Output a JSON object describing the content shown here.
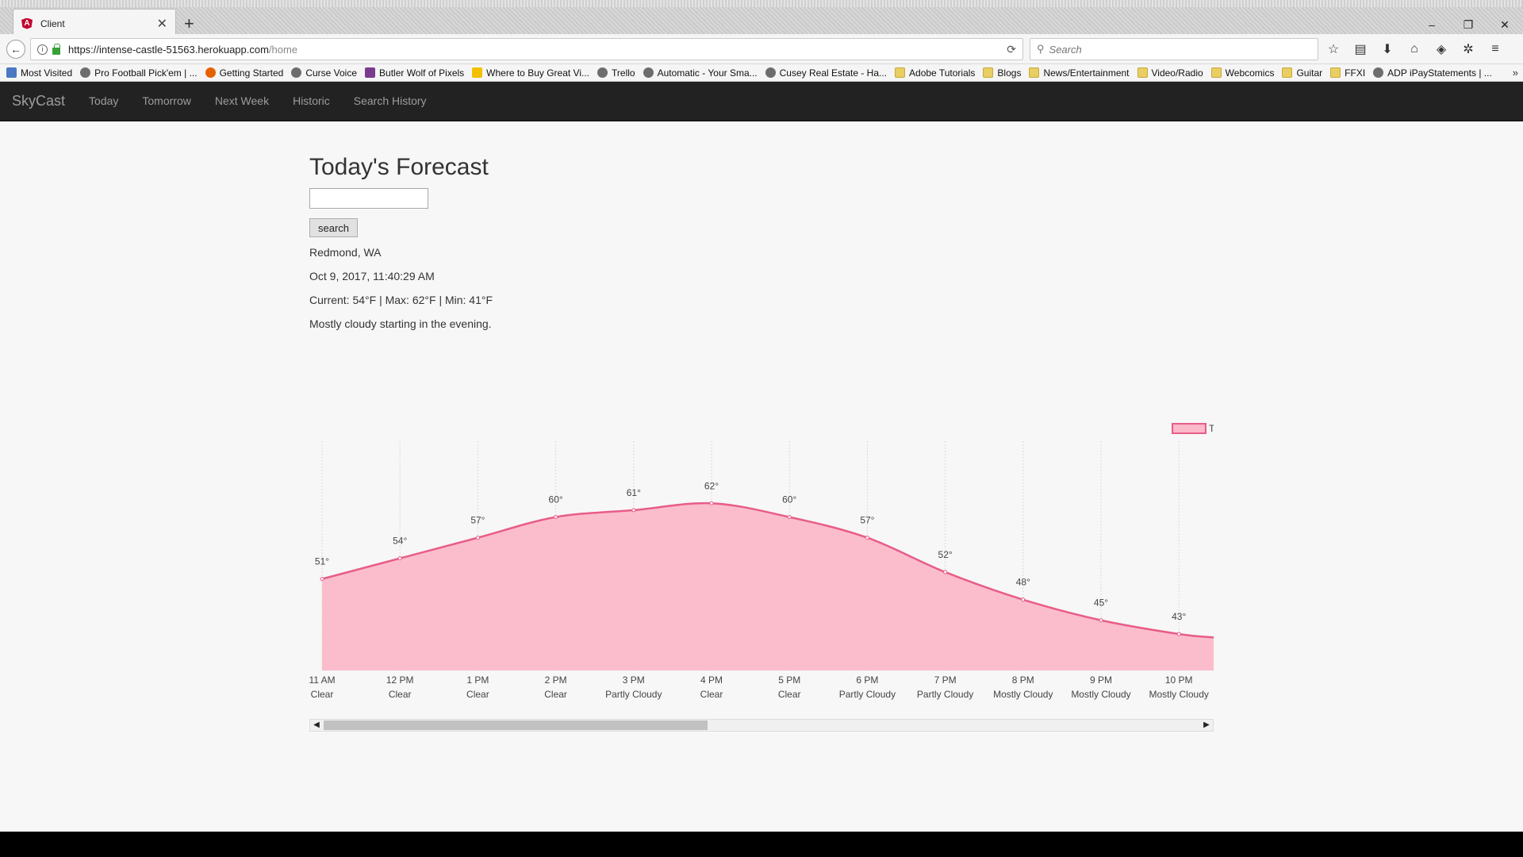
{
  "browser": {
    "tab_title": "Client",
    "tab_favicon": "A",
    "url_host": "https://intense-castle-51563.herokuapp.com",
    "url_path": "/home",
    "search_placeholder": "Search",
    "bookmarks": [
      {
        "label": "Most Visited",
        "icon": "book"
      },
      {
        "label": "Pro Football Pick'em | ...",
        "icon": "globe"
      },
      {
        "label": "Getting Started",
        "icon": "fx"
      },
      {
        "label": "Curse Voice",
        "icon": "globe"
      },
      {
        "label": "Butler Wolf of Pixels",
        "icon": "wolf"
      },
      {
        "label": "Where to Buy Great Vi...",
        "icon": "yk"
      },
      {
        "label": "Trello",
        "icon": "globe"
      },
      {
        "label": "Automatic - Your Sma...",
        "icon": "globe"
      },
      {
        "label": "Cusey Real Estate - Ha...",
        "icon": "globe"
      },
      {
        "label": "Adobe Tutorials",
        "icon": "folder"
      },
      {
        "label": "Blogs",
        "icon": "folder"
      },
      {
        "label": "News/Entertainment",
        "icon": "folder"
      },
      {
        "label": "Video/Radio",
        "icon": "folder"
      },
      {
        "label": "Webcomics",
        "icon": "folder"
      },
      {
        "label": "Guitar",
        "icon": "folder"
      },
      {
        "label": "FFXI",
        "icon": "folder"
      },
      {
        "label": "ADP iPayStatements | ...",
        "icon": "globe"
      }
    ]
  },
  "app": {
    "brand": "SkyCast",
    "nav": [
      "Today",
      "Tomorrow",
      "Next Week",
      "Historic",
      "Search History"
    ]
  },
  "forecast": {
    "title": "Today's Forecast",
    "input_value": "",
    "search_label": "search",
    "location": "Redmond, WA",
    "datetime": "Oct 9, 2017, 11:40:29 AM",
    "current_line": "Current: 54°F | Max: 62°F | Min: 41°F",
    "summary": "Mostly cloudy starting in the evening."
  },
  "chart_data": {
    "type": "area",
    "legend_label": "T",
    "legend_position": "top-right",
    "color_line": "#e85d88",
    "color_fill": "#fbb9c9",
    "x": [
      "11 AM",
      "12 PM",
      "1 PM",
      "2 PM",
      "3 PM",
      "4 PM",
      "5 PM",
      "6 PM",
      "7 PM",
      "8 PM",
      "9 PM",
      "10 PM"
    ],
    "conditions": [
      "Clear",
      "Clear",
      "Clear",
      "Clear",
      "Partly Cloudy",
      "Clear",
      "Clear",
      "Partly Cloudy",
      "Partly Cloudy",
      "Mostly Cloudy",
      "Mostly Cloudy",
      "Mostly Cloudy"
    ],
    "series": [
      {
        "values": [
          51,
          54,
          57,
          60,
          61,
          62,
          60,
          57,
          52,
          48,
          45,
          43
        ],
        "data_labels": [
          "51°",
          "54°",
          "57°",
          "60°",
          "61°",
          "62°",
          "60°",
          "57°",
          "52°",
          "48°",
          "45°",
          "43°"
        ]
      }
    ],
    "grid": "vertical"
  }
}
